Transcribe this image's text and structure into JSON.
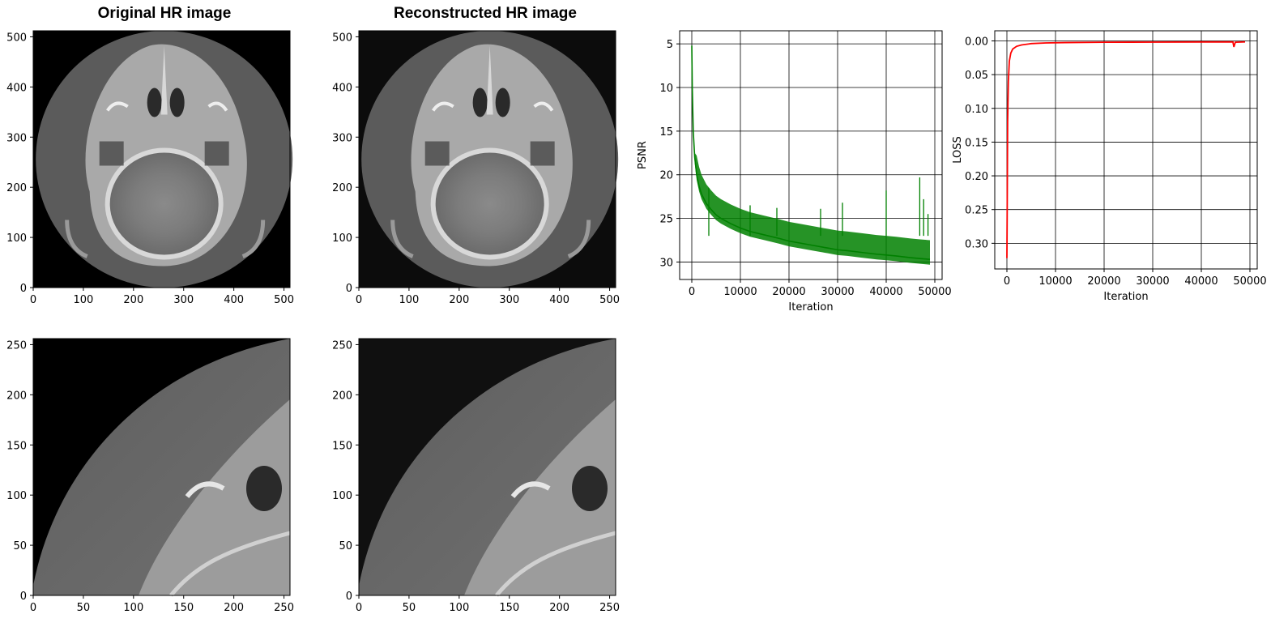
{
  "titles": {
    "original": "Original HR image",
    "reconstructed": "Reconstructed HR image"
  },
  "colors": {
    "highlight_box": "#e8322b",
    "psnr_line": "#008000",
    "loss_line": "#ff0000",
    "axes": "#000000",
    "grid": "#000000"
  },
  "chart_data": [
    {
      "type": "image",
      "title": "Original HR image",
      "xticks": [
        0,
        100,
        200,
        300,
        400,
        500
      ],
      "yticks": [
        0,
        100,
        200,
        300,
        400,
        500
      ],
      "xlim": [
        0,
        512
      ],
      "ylim": [
        512,
        0
      ],
      "highlight_box": {
        "x0": 0,
        "y0": 0,
        "x1": 274,
        "y1": 262
      }
    },
    {
      "type": "image",
      "title": "Reconstructed HR image",
      "xticks": [
        0,
        100,
        200,
        300,
        400,
        500
      ],
      "yticks": [
        0,
        100,
        200,
        300,
        400,
        500
      ],
      "xlim": [
        0,
        512
      ],
      "ylim": [
        512,
        0
      ],
      "highlight_box": {
        "x0": 0,
        "y0": 0,
        "x1": 274,
        "y1": 262
      }
    },
    {
      "type": "line",
      "xlabel": "Iteration",
      "ylabel": "PSNR",
      "xticks": [
        0,
        10000,
        20000,
        30000,
        40000,
        50000
      ],
      "yticks": [
        5,
        10,
        15,
        20,
        25,
        30
      ],
      "xlim": [
        -2500,
        51500
      ],
      "ylim": [
        3.5,
        32
      ],
      "grid": true,
      "series": [
        {
          "x": [
            0,
            100,
            300,
            600,
            1000,
            1500,
            2000,
            3000,
            4000,
            5000,
            6000,
            8000,
            10000,
            12000,
            15000,
            18000,
            20000,
            22000,
            25000,
            28000,
            30000,
            32000,
            35000,
            38000,
            40000,
            42000,
            45000,
            47000,
            49000
          ],
          "y": [
            5.2,
            10,
            15,
            18,
            20,
            21.3,
            22.2,
            23.3,
            24,
            24.6,
            25,
            25.6,
            26.1,
            26.5,
            26.9,
            27.3,
            27.6,
            27.8,
            28.1,
            28.4,
            28.6,
            28.7,
            28.9,
            29.1,
            29.2,
            29.3,
            29.5,
            29.6,
            29.7
          ]
        }
      ],
      "notable_dips": [
        {
          "x": 3500,
          "y": 21.5
        },
        {
          "x": 12000,
          "y": 23.5
        },
        {
          "x": 17500,
          "y": 23.8
        },
        {
          "x": 26500,
          "y": 23.9
        },
        {
          "x": 31000,
          "y": 23.2
        },
        {
          "x": 40000,
          "y": 21.8
        },
        {
          "x": 46900,
          "y": 20.3
        },
        {
          "x": 47700,
          "y": 22.8
        },
        {
          "x": 48600,
          "y": 24.5
        }
      ]
    },
    {
      "type": "line",
      "xlabel": "Iteration",
      "ylabel": "LOSS",
      "xticks": [
        0,
        10000,
        20000,
        30000,
        40000,
        50000
      ],
      "yticks": [
        0.0,
        0.05,
        0.1,
        0.15,
        0.2,
        0.25,
        0.3
      ],
      "ytick_labels": [
        "0.00",
        "0.05",
        "0.10",
        "0.15",
        "0.20",
        "0.25",
        "0.30"
      ],
      "xlim": [
        -2500,
        51500
      ],
      "ylim": [
        -0.015,
        0.338
      ],
      "grid": true,
      "series": [
        {
          "x": [
            0,
            50,
            150,
            300,
            500,
            800,
            1200,
            2000,
            3000,
            5000,
            8000,
            12000,
            20000,
            30000,
            40000,
            46500,
            46700,
            47000,
            49000
          ],
          "y": [
            0.322,
            0.26,
            0.12,
            0.06,
            0.03,
            0.018,
            0.012,
            0.008,
            0.006,
            0.004,
            0.003,
            0.0025,
            0.002,
            0.0018,
            0.0016,
            0.0016,
            0.009,
            0.002,
            0.0015
          ]
        }
      ]
    },
    {
      "type": "image",
      "title": "",
      "xticks": [
        0,
        50,
        100,
        150,
        200,
        250
      ],
      "yticks": [
        0,
        50,
        100,
        150,
        200,
        250
      ],
      "xlim": [
        0,
        256
      ],
      "ylim": [
        256,
        0
      ]
    },
    {
      "type": "image",
      "title": "",
      "xticks": [
        0,
        50,
        100,
        150,
        200,
        250
      ],
      "yticks": [
        0,
        50,
        100,
        150,
        200,
        250
      ],
      "xlim": [
        0,
        256
      ],
      "ylim": [
        256,
        0
      ]
    }
  ]
}
